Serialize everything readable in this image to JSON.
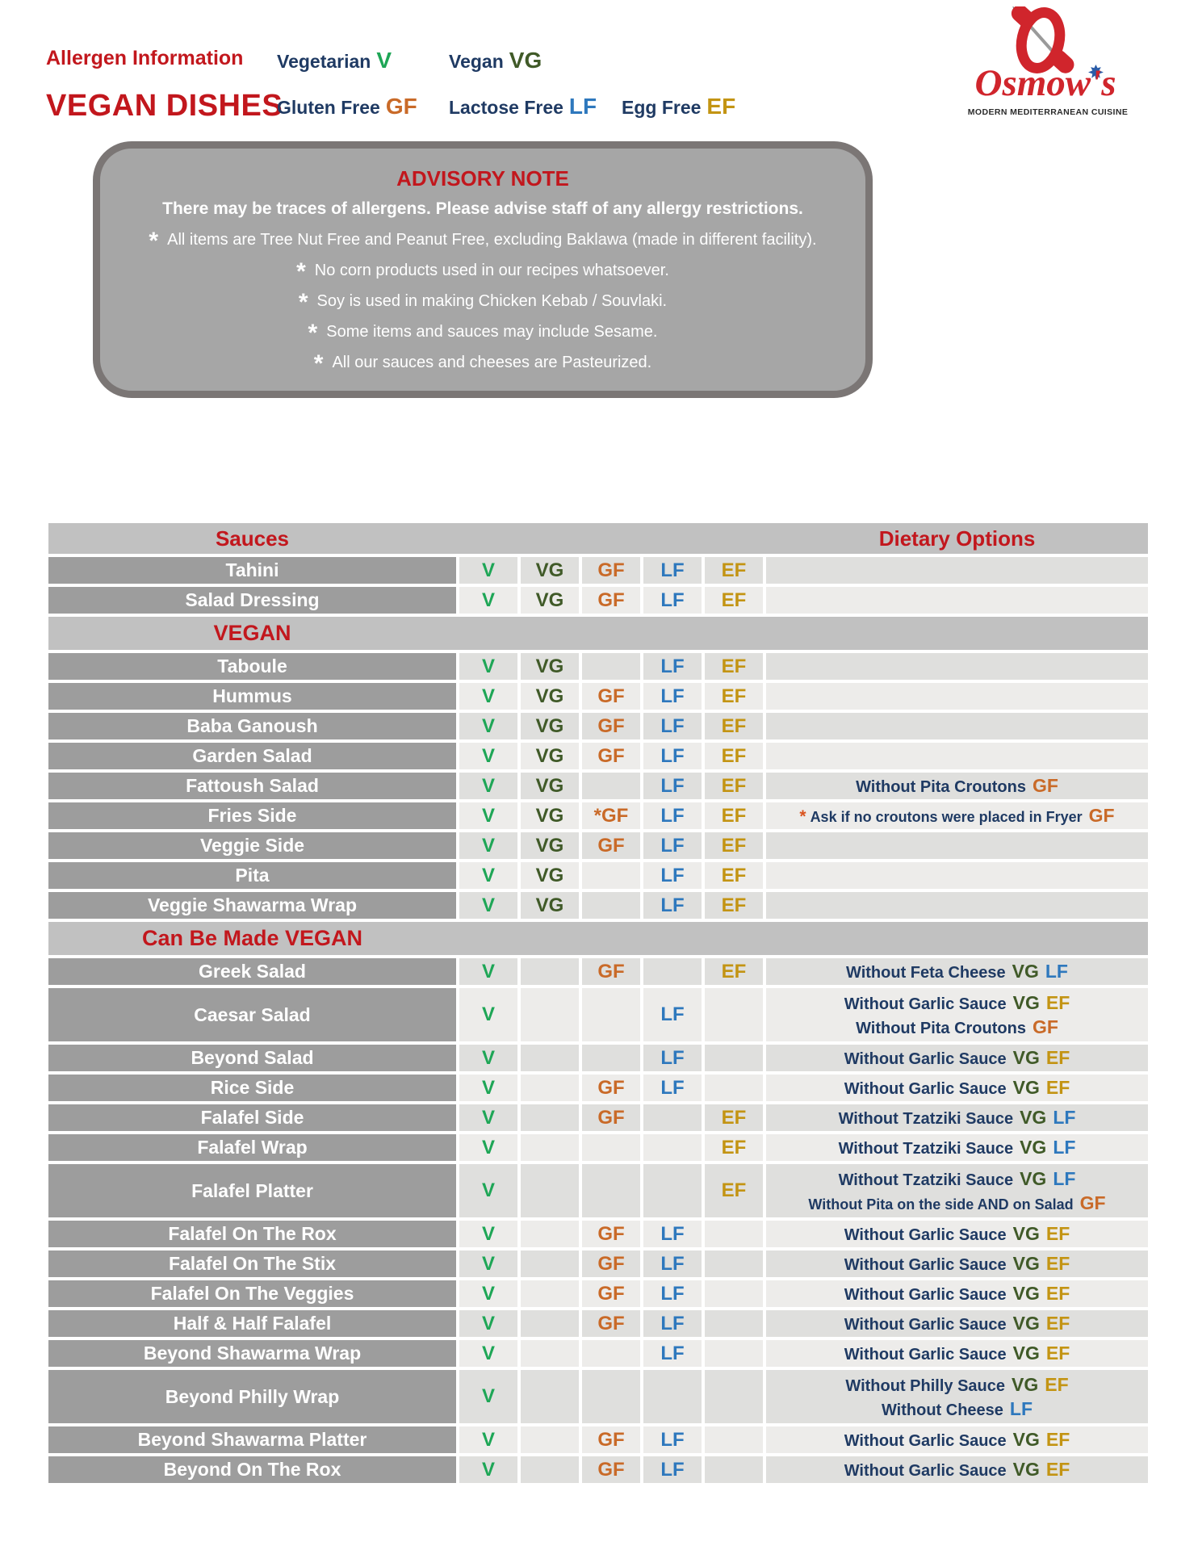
{
  "colors": {
    "v": "#1ea656",
    "vg": "#405a28",
    "gf": "#c96a28",
    "lf": "#2e78bd",
    "ef": "#c39413",
    "red": "#c2171d",
    "navy": "#1f3a63"
  },
  "header": {
    "title_small": "Allergen Information",
    "title_big": "VEGAN DISHES",
    "legend": [
      {
        "key": "v",
        "label": "Vegetarian",
        "code": "V"
      },
      {
        "key": "vg",
        "label": "Vegan",
        "code": "VG"
      },
      {
        "key": "gf",
        "label": "Gluten Free",
        "code": "GF"
      },
      {
        "key": "lf",
        "label": "Lactose Free",
        "code": "LF"
      },
      {
        "key": "ef",
        "label": "Egg Free",
        "code": "EF"
      }
    ],
    "logo": {
      "brand": "Osmow's",
      "tagline": "MODERN MEDITERRANEAN CUISINE"
    }
  },
  "advisory": {
    "title": "ADVISORY NOTE",
    "subtitle": "There may be traces of allergens. Please advise staff of any allergy restrictions.",
    "notes": [
      "All items are Tree Nut Free and Peanut Free, excluding Baklawa (made in different facility).",
      "No corn products used in our recipes whatsoever.",
      "Soy is used in making Chicken Kebab / Souvlaki.",
      "Some items and sauces may include Sesame.",
      "All our sauces and cheeses are Pasteurized."
    ]
  },
  "table": {
    "header": {
      "left": "Sauces",
      "right": "Dietary Options"
    },
    "sections": [
      {
        "title": "",
        "rows": [
          {
            "name": "Tahini",
            "badges": [
              "V",
              "VG",
              "GF",
              "LF",
              "EF"
            ],
            "notes": []
          },
          {
            "name": "Salad Dressing",
            "badges": [
              "V",
              "VG",
              "GF",
              "LF",
              "EF"
            ],
            "notes": []
          }
        ]
      },
      {
        "title": "VEGAN",
        "rows": [
          {
            "name": "Taboule",
            "badges": [
              "V",
              "VG",
              "",
              "LF",
              "EF"
            ],
            "notes": []
          },
          {
            "name": "Hummus",
            "badges": [
              "V",
              "VG",
              "GF",
              "LF",
              "EF"
            ],
            "notes": []
          },
          {
            "name": "Baba Ganoush",
            "badges": [
              "V",
              "VG",
              "GF",
              "LF",
              "EF"
            ],
            "notes": []
          },
          {
            "name": "Garden Salad",
            "badges": [
              "V",
              "VG",
              "GF",
              "LF",
              "EF"
            ],
            "notes": []
          },
          {
            "name": "Fattoush Salad",
            "badges": [
              "V",
              "VG",
              "",
              "LF",
              "EF"
            ],
            "notes": [
              {
                "text": "Without Pita Croutons",
                "codes": [
                  "GF"
                ]
              }
            ]
          },
          {
            "name": "Fries Side",
            "badges": [
              "V",
              "VG",
              "*GF",
              "LF",
              "EF"
            ],
            "notes": [
              {
                "prefix": "*",
                "text": "Ask if no croutons were placed in Fryer",
                "codes": [
                  "GF"
                ],
                "small": true
              }
            ]
          },
          {
            "name": "Veggie Side",
            "badges": [
              "V",
              "VG",
              "GF",
              "LF",
              "EF"
            ],
            "notes": []
          },
          {
            "name": "Pita",
            "badges": [
              "V",
              "VG",
              "",
              "LF",
              "EF"
            ],
            "notes": []
          },
          {
            "name": "Veggie Shawarma Wrap",
            "badges": [
              "V",
              "VG",
              "",
              "LF",
              "EF"
            ],
            "notes": []
          }
        ]
      },
      {
        "title": "Can Be Made VEGAN",
        "rows": [
          {
            "name": "Greek Salad",
            "badges": [
              "V",
              "",
              "GF",
              "",
              "EF"
            ],
            "notes": [
              {
                "text": "Without Feta Cheese",
                "codes": [
                  "VG",
                  "LF"
                ]
              }
            ]
          },
          {
            "name": "Caesar Salad",
            "badges": [
              "V",
              "",
              "",
              "LF",
              ""
            ],
            "notes": [
              {
                "text": "Without Garlic Sauce",
                "codes": [
                  "VG",
                  "EF"
                ]
              },
              {
                "text": "Without Pita Croutons",
                "codes": [
                  "GF"
                ]
              }
            ]
          },
          {
            "name": "Beyond Salad",
            "badges": [
              "V",
              "",
              "",
              "LF",
              ""
            ],
            "notes": [
              {
                "text": "Without Garlic Sauce",
                "codes": [
                  "VG",
                  "EF"
                ]
              }
            ]
          },
          {
            "name": "Rice Side",
            "badges": [
              "V",
              "",
              "GF",
              "LF",
              ""
            ],
            "notes": [
              {
                "text": "Without Garlic Sauce",
                "codes": [
                  "VG",
                  "EF"
                ]
              }
            ]
          },
          {
            "name": "Falafel Side",
            "badges": [
              "V",
              "",
              "GF",
              "",
              "EF"
            ],
            "notes": [
              {
                "text": "Without Tzatziki Sauce",
                "codes": [
                  "VG",
                  "LF"
                ]
              }
            ]
          },
          {
            "name": "Falafel Wrap",
            "badges": [
              "V",
              "",
              "",
              "",
              "EF"
            ],
            "notes": [
              {
                "text": "Without Tzatziki Sauce",
                "codes": [
                  "VG",
                  "LF"
                ]
              }
            ]
          },
          {
            "name": "Falafel Platter",
            "badges": [
              "V",
              "",
              "",
              "",
              "EF"
            ],
            "notes": [
              {
                "text": "Without Tzatziki Sauce",
                "codes": [
                  "VG",
                  "LF"
                ]
              },
              {
                "text": "Without Pita on the side AND on Salad",
                "codes": [
                  "GF"
                ],
                "small": true
              }
            ]
          },
          {
            "name": "Falafel On The Rox",
            "badges": [
              "V",
              "",
              "GF",
              "LF",
              ""
            ],
            "notes": [
              {
                "text": "Without Garlic Sauce",
                "codes": [
                  "VG",
                  "EF"
                ]
              }
            ]
          },
          {
            "name": "Falafel On The Stix",
            "badges": [
              "V",
              "",
              "GF",
              "LF",
              ""
            ],
            "notes": [
              {
                "text": "Without Garlic Sauce",
                "codes": [
                  "VG",
                  "EF"
                ]
              }
            ]
          },
          {
            "name": "Falafel On The Veggies",
            "badges": [
              "V",
              "",
              "GF",
              "LF",
              ""
            ],
            "notes": [
              {
                "text": "Without Garlic Sauce",
                "codes": [
                  "VG",
                  "EF"
                ]
              }
            ]
          },
          {
            "name": "Half & Half Falafel",
            "badges": [
              "V",
              "",
              "GF",
              "LF",
              ""
            ],
            "notes": [
              {
                "text": "Without Garlic Sauce",
                "codes": [
                  "VG",
                  "EF"
                ]
              }
            ]
          },
          {
            "name": "Beyond Shawarma Wrap",
            "badges": [
              "V",
              "",
              "",
              "LF",
              ""
            ],
            "notes": [
              {
                "text": "Without Garlic Sauce",
                "codes": [
                  "VG",
                  "EF"
                ]
              }
            ]
          },
          {
            "name": "Beyond Philly Wrap",
            "badges": [
              "V",
              "",
              "",
              "",
              ""
            ],
            "notes": [
              {
                "text": "Without Philly Sauce",
                "codes": [
                  "VG",
                  "EF"
                ]
              },
              {
                "text": "Without Cheese",
                "codes": [
                  "LF"
                ]
              }
            ]
          },
          {
            "name": "Beyond Shawarma Platter",
            "badges": [
              "V",
              "",
              "GF",
              "LF",
              ""
            ],
            "notes": [
              {
                "text": "Without Garlic Sauce",
                "codes": [
                  "VG",
                  "EF"
                ]
              }
            ]
          },
          {
            "name": "Beyond On The Rox",
            "badges": [
              "V",
              "",
              "GF",
              "LF",
              ""
            ],
            "notes": [
              {
                "text": "Without Garlic Sauce",
                "codes": [
                  "VG",
                  "EF"
                ]
              }
            ]
          }
        ]
      }
    ]
  }
}
